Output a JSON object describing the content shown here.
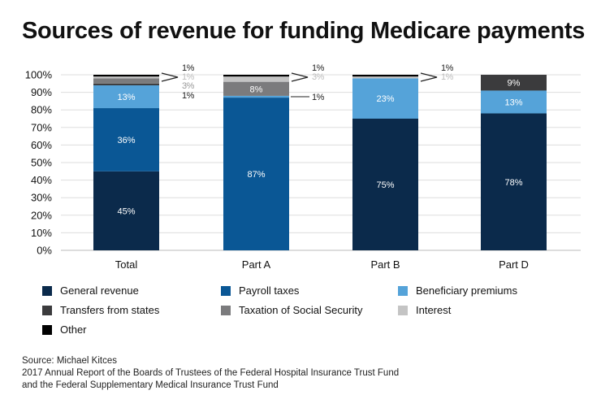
{
  "title": "Sources of revenue for funding Medicare payments",
  "chart_data": {
    "type": "bar",
    "stacked": true,
    "categories": [
      "Total",
      "Part A",
      "Part B",
      "Part D"
    ],
    "ylim": [
      0,
      100
    ],
    "yticks": [
      "0%",
      "10%",
      "20%",
      "30%",
      "40%",
      "50%",
      "60%",
      "70%",
      "80%",
      "90%",
      "100%"
    ],
    "grid": true,
    "legend_placement": "bottom",
    "series": [
      {
        "name": "General revenue",
        "color": "#0b2a4b",
        "values": [
          45,
          0,
          75,
          78
        ]
      },
      {
        "name": "Payroll taxes",
        "color": "#0a5795",
        "values": [
          36,
          87,
          0,
          0
        ]
      },
      {
        "name": "Beneficiary premiums",
        "color": "#55a3d9",
        "values": [
          13,
          1,
          23,
          13
        ]
      },
      {
        "name": "Transfers from states",
        "color": "#3b3b3d",
        "values": [
          1,
          0,
          0,
          9
        ]
      },
      {
        "name": "Taxation of Social Security",
        "color": "#7b7b7d",
        "values": [
          3,
          8,
          0,
          0
        ]
      },
      {
        "name": "Interest",
        "color": "#c4c4c4",
        "values": [
          1,
          3,
          1,
          0
        ]
      },
      {
        "name": "Other",
        "color": "#000000",
        "values": [
          1,
          1,
          1,
          0
        ]
      }
    ]
  },
  "source": {
    "line1": "Source: Michael Kitces",
    "line2": "2017 Annual Report of the Boards of Trustees of the Federal Hospital Insurance Trust Fund",
    "line3": "and the Federal Supplementary Medical Insurance Trust Fund"
  }
}
